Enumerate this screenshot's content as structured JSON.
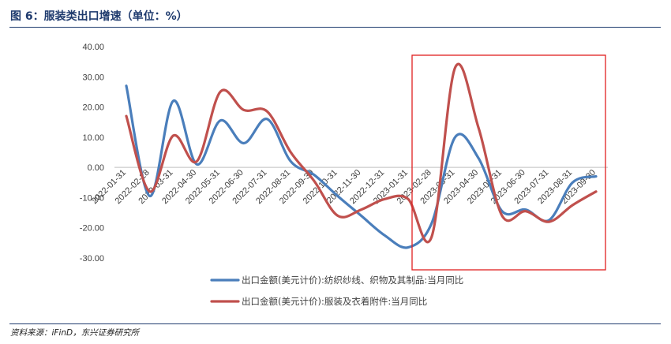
{
  "figure": {
    "title": "图 6：服装类出口增速（单位：%）",
    "source": "资料来源：iFinD，东兴证券研究所"
  },
  "chart_data": {
    "type": "line",
    "title": "",
    "xlabel": "",
    "ylabel": "",
    "ylim": [
      -30,
      40
    ],
    "yticks": [
      "40.00",
      "30.00",
      "20.00",
      "10.00",
      "0.00",
      "-10.00",
      "-20.00",
      "-30.00"
    ],
    "categories": [
      "2022-01-31",
      "2022-02-28",
      "2022-03-31",
      "2022-04-30",
      "2022-05-31",
      "2022-06-30",
      "2022-07-31",
      "2022-08-31",
      "2022-09-30",
      "2022-10-31",
      "2022-11-30",
      "2022-12-31",
      "2023-01-31",
      "2023-02-28",
      "2023-03-31",
      "2023-04-30",
      "2023-05-31",
      "2023-06-30",
      "2023-07-31",
      "2023-08-31",
      "2023-09-30"
    ],
    "series": [
      {
        "name": "出口金额(美元计价):纺织纱线、织物及其制品:当月同比",
        "color": "#4a7ebb",
        "values": [
          27.0,
          -9.5,
          22.0,
          1.0,
          15.5,
          8.0,
          16.0,
          2.0,
          -2.5,
          -9.5,
          -16.0,
          -22.5,
          -26.5,
          -18.5,
          10.0,
          3.0,
          -14.5,
          -14.0,
          -17.5,
          -5.0,
          -3.0
        ]
      },
      {
        "name": "出口金额(美元计价):服装及衣着附件:当月同比",
        "color": "#c0504d",
        "values": [
          17.0,
          -8.0,
          10.5,
          2.0,
          25.0,
          19.0,
          18.5,
          5.0,
          -4.5,
          -16.0,
          -14.0,
          -10.5,
          -10.5,
          -23.0,
          33.0,
          13.0,
          -16.0,
          -14.5,
          -18.0,
          -12.5,
          -8.0
        ]
      }
    ],
    "highlight": {
      "from": "2023-01-31",
      "to": "2023-09-30",
      "color": "#e02020"
    },
    "legend_position": "bottom",
    "grid": false
  }
}
